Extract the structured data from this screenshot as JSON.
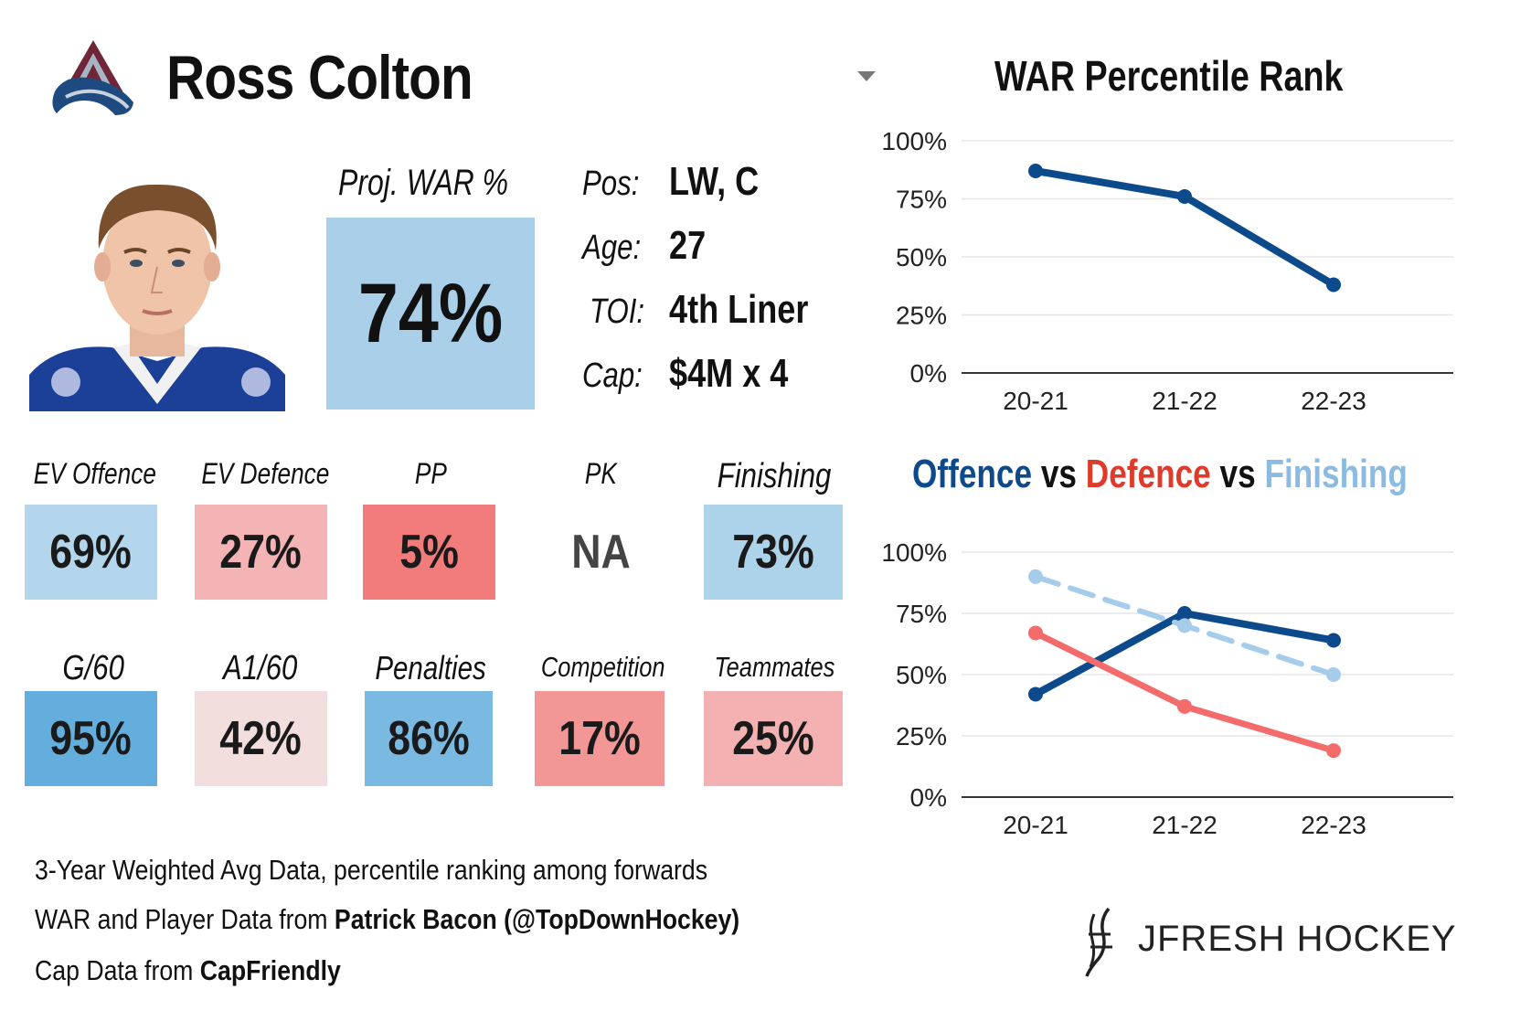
{
  "header": {
    "player_name": "Ross Colton",
    "team_logo": "avalanche-logo-icon",
    "dropdown_icon": "chevron-down-icon"
  },
  "headshot": {
    "icon": "player-headshot"
  },
  "proj_war": {
    "label": "Proj. WAR %",
    "value": "74%"
  },
  "info": [
    {
      "label": "Pos:",
      "value": "LW, C"
    },
    {
      "label": "Age:",
      "value": "27"
    },
    {
      "label": "TOI:",
      "value": "4th Liner"
    },
    {
      "label": "Cap:",
      "value": "$4M x 4"
    }
  ],
  "stats_row1": [
    {
      "label": "EV Offence",
      "value": "69%",
      "color": "#b3d6ec"
    },
    {
      "label": "EV Defence",
      "value": "27%",
      "color": "#f4b3b4"
    },
    {
      "label": "PP",
      "value": "5%",
      "color": "#f27b7b"
    },
    {
      "label": "PK",
      "value": "NA",
      "color": "#ffffff"
    },
    {
      "label": "Finishing",
      "value": "73%",
      "color": "#add3ea"
    }
  ],
  "stats_row2": [
    {
      "label": "G/60",
      "value": "95%",
      "color": "#63aedd"
    },
    {
      "label": "A1/60",
      "value": "42%",
      "color": "#f1dedd"
    },
    {
      "label": "Penalties",
      "value": "86%",
      "color": "#7ab9e1"
    },
    {
      "label": "Competition",
      "value": "17%",
      "color": "#f39796"
    },
    {
      "label": "Teammates",
      "value": "25%",
      "color": "#f4b1b1"
    }
  ],
  "footer": {
    "line1": "3-Year Weighted Avg Data, percentile ranking among forwards",
    "line2_prefix": "WAR and Player Data from ",
    "line2_bold": "Patrick Bacon (@TopDownHockey)",
    "line3_prefix": "Cap Data from ",
    "line3_bold": "CapFriendly"
  },
  "brand": {
    "text": "JFRESH HOCKEY",
    "icon": "jfresh-logo-icon"
  },
  "titles": {
    "war": "WAR Percentile Rank",
    "ovd_offence": "Offence",
    "ovd_vs1": " vs ",
    "ovd_defence": "Defence",
    "ovd_vs2": " vs ",
    "ovd_finishing": "Finishing"
  },
  "colors": {
    "offence": "#0d4a8c",
    "defence": "#f36b6b",
    "finishing": "#a6cceb",
    "title_offence": "#0d4a8c",
    "title_defence": "#e03a2a",
    "title_finishing": "#8bbbe3"
  },
  "chart_data": [
    {
      "type": "line",
      "title": "WAR Percentile Rank",
      "categories": [
        "20-21",
        "21-22",
        "22-23"
      ],
      "series": [
        {
          "name": "WAR",
          "values": [
            87,
            76,
            38
          ]
        }
      ],
      "ylim": [
        0,
        100
      ],
      "yticks": [
        "0%",
        "25%",
        "50%",
        "75%",
        "100%"
      ],
      "grid": true
    },
    {
      "type": "line",
      "title": "Offence vs Defence vs Finishing",
      "categories": [
        "20-21",
        "21-22",
        "22-23"
      ],
      "series": [
        {
          "name": "Offence",
          "values": [
            42,
            75,
            64
          ],
          "style": "solid"
        },
        {
          "name": "Defence",
          "values": [
            67,
            37,
            19
          ],
          "style": "solid"
        },
        {
          "name": "Finishing",
          "values": [
            90,
            70,
            50
          ],
          "style": "dashed"
        }
      ],
      "ylim": [
        0,
        100
      ],
      "yticks": [
        "0%",
        "25%",
        "50%",
        "75%",
        "100%"
      ],
      "grid": true
    }
  ]
}
